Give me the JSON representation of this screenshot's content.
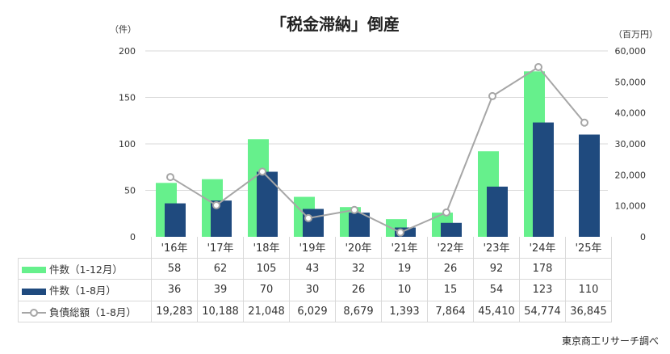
{
  "chart_data": {
    "type": "bar+line",
    "title": "「税金滞納」倒産",
    "y_left_unit": "（件）",
    "y_right_unit": "（百万円）",
    "ylim_left": [
      0,
      200
    ],
    "ylim_right": [
      0,
      60000
    ],
    "yticks_left": [
      "0",
      "50",
      "100",
      "150",
      "200"
    ],
    "yticks_right": [
      "0",
      "10,000",
      "20,000",
      "30,000",
      "40,000",
      "50,000",
      "60,000"
    ],
    "grid": true,
    "categories": [
      "'16年",
      "'17年",
      "'18年",
      "'19年",
      "'20年",
      "'21年",
      "'22年",
      "'23年",
      "'24年",
      "'25年"
    ],
    "series": [
      {
        "name": "件数（1-12月）",
        "type": "bar",
        "axis": "left",
        "color": "#66f08c",
        "values": [
          58,
          62,
          105,
          43,
          32,
          19,
          26,
          92,
          178,
          null
        ],
        "labels": [
          "58",
          "62",
          "105",
          "43",
          "32",
          "19",
          "26",
          "92",
          "178",
          ""
        ]
      },
      {
        "name": "件数（1-8月）",
        "type": "bar",
        "axis": "left",
        "color": "#1f4a7e",
        "values": [
          36,
          39,
          70,
          30,
          26,
          10,
          15,
          54,
          123,
          110
        ],
        "labels": [
          "36",
          "39",
          "70",
          "30",
          "26",
          "10",
          "15",
          "54",
          "123",
          "110"
        ]
      },
      {
        "name": "負債総額（1-8月）",
        "type": "line",
        "axis": "right",
        "color": "#a6a6a6",
        "values": [
          19283,
          10188,
          21048,
          6029,
          8679,
          1393,
          7864,
          45410,
          54774,
          36845
        ],
        "labels": [
          "19,283",
          "10,188",
          "21,048",
          "6,029",
          "8,679",
          "1,393",
          "7,864",
          "45,410",
          "54,774",
          "36,845"
        ]
      }
    ],
    "source": "東京商工リサーチ調べ"
  }
}
